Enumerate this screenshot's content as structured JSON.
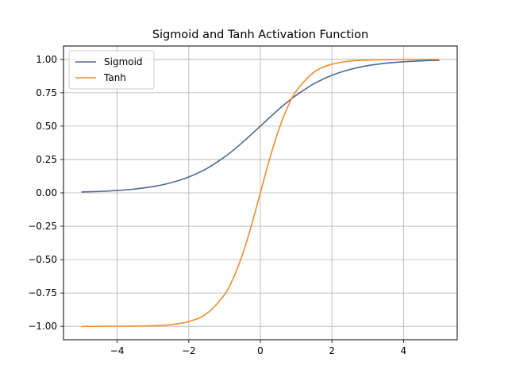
{
  "chart_data": {
    "type": "line",
    "title": "Sigmoid and Tanh Activation Function",
    "xlabel": "",
    "ylabel": "",
    "xlim": [
      -5.5,
      5.5
    ],
    "ylim": [
      -1.1,
      1.1
    ],
    "grid": true,
    "legend_position": "top-left",
    "x_ticks": [
      -4,
      -2,
      0,
      2,
      4
    ],
    "x_tick_labels": [
      "−4",
      "−2",
      "0",
      "2",
      "4"
    ],
    "y_ticks": [
      1.0,
      0.75,
      0.5,
      0.25,
      0.0,
      -0.25,
      -0.5,
      -0.75,
      -1.0
    ],
    "y_tick_labels": [
      "1.00",
      "0.75",
      "0.50",
      "0.25",
      "0.00",
      "−0.25",
      "−0.50",
      "−0.75",
      "−1.00"
    ],
    "x": [
      -5,
      -4.5,
      -4,
      -3.5,
      -3,
      -2.5,
      -2,
      -1.5,
      -1,
      -0.75,
      -0.5,
      -0.25,
      0,
      0.25,
      0.5,
      0.75,
      1,
      1.5,
      2,
      2.5,
      3,
      3.5,
      4,
      4.5,
      5
    ],
    "series": [
      {
        "name": "Sigmoid",
        "color": "#4e6a8b",
        "values": [
          0.007,
          0.011,
          0.018,
          0.029,
          0.047,
          0.076,
          0.119,
          0.182,
          0.269,
          0.321,
          0.378,
          0.438,
          0.5,
          0.562,
          0.622,
          0.679,
          0.731,
          0.818,
          0.881,
          0.924,
          0.953,
          0.971,
          0.982,
          0.989,
          0.993
        ]
      },
      {
        "name": "Tanh",
        "color": "#f08a2c",
        "values": [
          -1.0,
          -1.0,
          -0.999,
          -0.998,
          -0.995,
          -0.987,
          -0.964,
          -0.905,
          -0.762,
          -0.635,
          -0.462,
          -0.245,
          0.0,
          0.245,
          0.462,
          0.635,
          0.762,
          0.905,
          0.964,
          0.987,
          0.995,
          0.998,
          0.999,
          1.0,
          1.0
        ]
      }
    ]
  }
}
